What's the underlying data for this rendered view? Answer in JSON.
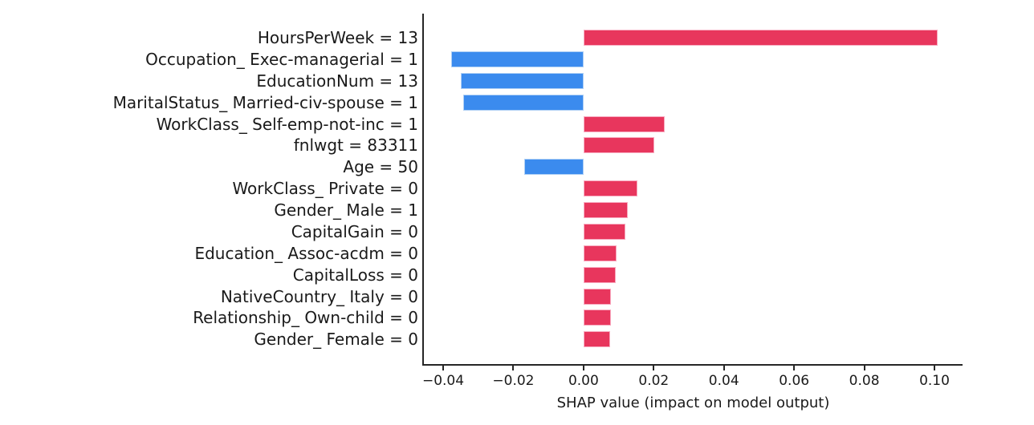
{
  "chart_data": {
    "type": "bar",
    "orientation": "horizontal",
    "title": "",
    "xlabel": "SHAP value (impact on model output)",
    "ylabel": "",
    "xlim": [
      -0.0455,
      0.108
    ],
    "grid": false,
    "legend": null,
    "x_ticks": [
      {
        "value": -0.04,
        "label": "−0.04"
      },
      {
        "value": -0.02,
        "label": "−0.02"
      },
      {
        "value": 0.0,
        "label": "0.00"
      },
      {
        "value": 0.02,
        "label": "0.02"
      },
      {
        "value": 0.04,
        "label": "0.04"
      },
      {
        "value": 0.06,
        "label": "0.06"
      },
      {
        "value": 0.08,
        "label": "0.08"
      },
      {
        "value": 0.1,
        "label": "0.10"
      }
    ],
    "bars": [
      {
        "label": "HoursPerWeek = 13",
        "value": 0.101
      },
      {
        "label": "Occupation_ Exec-managerial = 1",
        "value": -0.0378
      },
      {
        "label": "EducationNum = 13",
        "value": -0.035
      },
      {
        "label": "MaritalStatus_ Married-civ-spouse = 1",
        "value": -0.0344
      },
      {
        "label": "WorkClass_ Self-emp-not-inc = 1",
        "value": 0.0231
      },
      {
        "label": "fnlwgt = 83311",
        "value": 0.0202
      },
      {
        "label": "Age = 50",
        "value": -0.0169
      },
      {
        "label": "WorkClass_ Private = 0",
        "value": 0.0154
      },
      {
        "label": "Gender_ Male = 1",
        "value": 0.0126
      },
      {
        "label": "CapitalGain = 0",
        "value": 0.012
      },
      {
        "label": "Education_ Assoc-acdm = 0",
        "value": 0.0093
      },
      {
        "label": "CapitalLoss = 0",
        "value": 0.0091
      },
      {
        "label": "NativeCountry_ Italy = 0",
        "value": 0.0079
      },
      {
        "label": "Relationship_ Own-child = 0",
        "value": 0.0077
      },
      {
        "label": "Gender_ Female = 0",
        "value": 0.0076
      }
    ],
    "colors": {
      "positive": "#e8365d",
      "negative": "#3b8bee",
      "positive_edge": "#f8aabf",
      "negative_edge": "#aecff5",
      "axis": "#262626",
      "text": "#1a1a1a",
      "background": "#ffffff"
    }
  }
}
